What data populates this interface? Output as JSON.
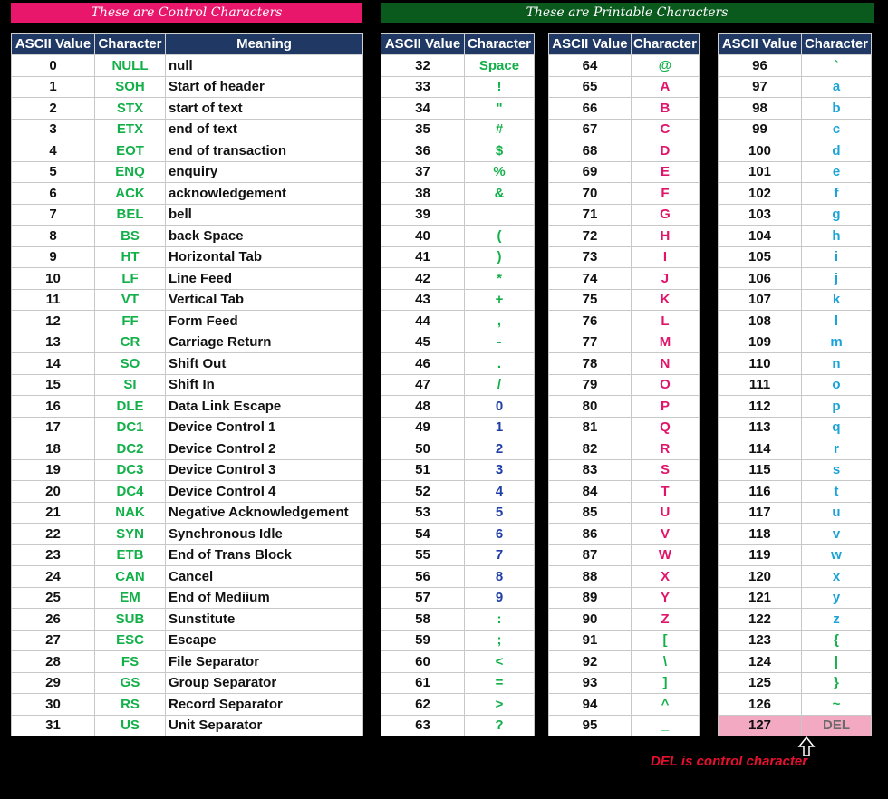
{
  "banners": {
    "control": "These are Control Characters",
    "printable": "These are Printable Characters"
  },
  "headers": {
    "ascii_value": "ASCII Value",
    "character": "Character",
    "meaning": "Meaning"
  },
  "control_rows": [
    {
      "v": "0",
      "c": "NULL",
      "m": "null"
    },
    {
      "v": "1",
      "c": "SOH",
      "m": "Start of header"
    },
    {
      "v": "2",
      "c": "STX",
      "m": "start of text"
    },
    {
      "v": "3",
      "c": "ETX",
      "m": "end of text"
    },
    {
      "v": "4",
      "c": "EOT",
      "m": "end of transaction"
    },
    {
      "v": "5",
      "c": "ENQ",
      "m": "enquiry"
    },
    {
      "v": "6",
      "c": "ACK",
      "m": "acknowledgement"
    },
    {
      "v": "7",
      "c": "BEL",
      "m": "bell"
    },
    {
      "v": "8",
      "c": "BS",
      "m": "back Space"
    },
    {
      "v": "9",
      "c": "HT",
      "m": "Horizontal Tab"
    },
    {
      "v": "10",
      "c": "LF",
      "m": "Line Feed"
    },
    {
      "v": "11",
      "c": "VT",
      "m": "Vertical Tab"
    },
    {
      "v": "12",
      "c": "FF",
      "m": "Form Feed"
    },
    {
      "v": "13",
      "c": "CR",
      "m": "Carriage Return"
    },
    {
      "v": "14",
      "c": "SO",
      "m": "Shift Out"
    },
    {
      "v": "15",
      "c": "SI",
      "m": "Shift In"
    },
    {
      "v": "16",
      "c": "DLE",
      "m": "Data Link Escape"
    },
    {
      "v": "17",
      "c": "DC1",
      "m": "Device Control 1"
    },
    {
      "v": "18",
      "c": "DC2",
      "m": "Device Control 2"
    },
    {
      "v": "19",
      "c": "DC3",
      "m": "Device Control 3"
    },
    {
      "v": "20",
      "c": "DC4",
      "m": "Device Control 4"
    },
    {
      "v": "21",
      "c": "NAK",
      "m": "Negative Acknowledgement"
    },
    {
      "v": "22",
      "c": "SYN",
      "m": "Synchronous Idle"
    },
    {
      "v": "23",
      "c": "ETB",
      "m": "End of Trans Block"
    },
    {
      "v": "24",
      "c": "CAN",
      "m": "Cancel"
    },
    {
      "v": "25",
      "c": "EM",
      "m": "End of Mediium"
    },
    {
      "v": "26",
      "c": "SUB",
      "m": "Sunstitute"
    },
    {
      "v": "27",
      "c": "ESC",
      "m": "Escape"
    },
    {
      "v": "28",
      "c": "FS",
      "m": "File Separator"
    },
    {
      "v": "29",
      "c": "GS",
      "m": "Group Separator"
    },
    {
      "v": "30",
      "c": "RS",
      "m": "Record Separator"
    },
    {
      "v": "31",
      "c": "US",
      "m": "Unit Separator"
    }
  ],
  "printable_col1": [
    {
      "v": "32",
      "c": "Space",
      "k": "cg"
    },
    {
      "v": "33",
      "c": "!",
      "k": "cg"
    },
    {
      "v": "34",
      "c": "\"",
      "k": "cg"
    },
    {
      "v": "35",
      "c": "#",
      "k": "cg"
    },
    {
      "v": "36",
      "c": "$",
      "k": "cg"
    },
    {
      "v": "37",
      "c": "%",
      "k": "cg"
    },
    {
      "v": "38",
      "c": "&",
      "k": "cg"
    },
    {
      "v": "39",
      "c": "",
      "k": "cg"
    },
    {
      "v": "40",
      "c": "(",
      "k": "cg"
    },
    {
      "v": "41",
      "c": ")",
      "k": "cg"
    },
    {
      "v": "42",
      "c": "*",
      "k": "cg"
    },
    {
      "v": "43",
      "c": "+",
      "k": "cg"
    },
    {
      "v": "44",
      "c": ",",
      "k": "cg"
    },
    {
      "v": "45",
      "c": "-",
      "k": "cg"
    },
    {
      "v": "46",
      "c": ".",
      "k": "cg"
    },
    {
      "v": "47",
      "c": "/",
      "k": "cg"
    },
    {
      "v": "48",
      "c": "0",
      "k": "cb"
    },
    {
      "v": "49",
      "c": "1",
      "k": "cb"
    },
    {
      "v": "50",
      "c": "2",
      "k": "cb"
    },
    {
      "v": "51",
      "c": "3",
      "k": "cb"
    },
    {
      "v": "52",
      "c": "4",
      "k": "cb"
    },
    {
      "v": "53",
      "c": "5",
      "k": "cb"
    },
    {
      "v": "54",
      "c": "6",
      "k": "cb"
    },
    {
      "v": "55",
      "c": "7",
      "k": "cb"
    },
    {
      "v": "56",
      "c": "8",
      "k": "cb"
    },
    {
      "v": "57",
      "c": "9",
      "k": "cb"
    },
    {
      "v": "58",
      "c": ":",
      "k": "cg"
    },
    {
      "v": "59",
      "c": ";",
      "k": "cg"
    },
    {
      "v": "60",
      "c": "<",
      "k": "cg"
    },
    {
      "v": "61",
      "c": "=",
      "k": "cg"
    },
    {
      "v": "62",
      "c": ">",
      "k": "cg"
    },
    {
      "v": "63",
      "c": "?",
      "k": "cg"
    }
  ],
  "printable_col2": [
    {
      "v": "64",
      "c": "@",
      "k": "cg"
    },
    {
      "v": "65",
      "c": "A",
      "k": "cr"
    },
    {
      "v": "66",
      "c": "B",
      "k": "cr"
    },
    {
      "v": "67",
      "c": "C",
      "k": "cr"
    },
    {
      "v": "68",
      "c": "D",
      "k": "cr"
    },
    {
      "v": "69",
      "c": "E",
      "k": "cr"
    },
    {
      "v": "70",
      "c": "F",
      "k": "cr"
    },
    {
      "v": "71",
      "c": "G",
      "k": "cr"
    },
    {
      "v": "72",
      "c": "H",
      "k": "cr"
    },
    {
      "v": "73",
      "c": "I",
      "k": "cr"
    },
    {
      "v": "74",
      "c": "J",
      "k": "cr"
    },
    {
      "v": "75",
      "c": "K",
      "k": "cr"
    },
    {
      "v": "76",
      "c": "L",
      "k": "cr"
    },
    {
      "v": "77",
      "c": "M",
      "k": "cr"
    },
    {
      "v": "78",
      "c": "N",
      "k": "cr"
    },
    {
      "v": "79",
      "c": "O",
      "k": "cr"
    },
    {
      "v": "80",
      "c": "P",
      "k": "cr"
    },
    {
      "v": "81",
      "c": "Q",
      "k": "cr"
    },
    {
      "v": "82",
      "c": "R",
      "k": "cr"
    },
    {
      "v": "83",
      "c": "S",
      "k": "cr"
    },
    {
      "v": "84",
      "c": "T",
      "k": "cr"
    },
    {
      "v": "85",
      "c": "U",
      "k": "cr"
    },
    {
      "v": "86",
      "c": "V",
      "k": "cr"
    },
    {
      "v": "87",
      "c": "W",
      "k": "cr"
    },
    {
      "v": "88",
      "c": "X",
      "k": "cr"
    },
    {
      "v": "89",
      "c": "Y",
      "k": "cr"
    },
    {
      "v": "90",
      "c": "Z",
      "k": "cr"
    },
    {
      "v": "91",
      "c": "[",
      "k": "cg"
    },
    {
      "v": "92",
      "c": "\\",
      "k": "cg"
    },
    {
      "v": "93",
      "c": "]",
      "k": "cg"
    },
    {
      "v": "94",
      "c": "^",
      "k": "cg"
    },
    {
      "v": "95",
      "c": "_",
      "k": "cg"
    }
  ],
  "printable_col3": [
    {
      "v": "96",
      "c": "`",
      "k": "cg"
    },
    {
      "v": "97",
      "c": "a",
      "k": "cc"
    },
    {
      "v": "98",
      "c": "b",
      "k": "cc"
    },
    {
      "v": "99",
      "c": "c",
      "k": "cc"
    },
    {
      "v": "100",
      "c": "d",
      "k": "cc"
    },
    {
      "v": "101",
      "c": "e",
      "k": "cc"
    },
    {
      "v": "102",
      "c": "f",
      "k": "cc"
    },
    {
      "v": "103",
      "c": "g",
      "k": "cc"
    },
    {
      "v": "104",
      "c": "h",
      "k": "cc"
    },
    {
      "v": "105",
      "c": "i",
      "k": "cc"
    },
    {
      "v": "106",
      "c": "j",
      "k": "cc"
    },
    {
      "v": "107",
      "c": "k",
      "k": "cc"
    },
    {
      "v": "108",
      "c": "l",
      "k": "cc"
    },
    {
      "v": "109",
      "c": "m",
      "k": "cc"
    },
    {
      "v": "110",
      "c": "n",
      "k": "cc"
    },
    {
      "v": "111",
      "c": "o",
      "k": "cc"
    },
    {
      "v": "112",
      "c": "p",
      "k": "cc"
    },
    {
      "v": "113",
      "c": "q",
      "k": "cc"
    },
    {
      "v": "114",
      "c": "r",
      "k": "cc"
    },
    {
      "v": "115",
      "c": "s",
      "k": "cc"
    },
    {
      "v": "116",
      "c": "t",
      "k": "cc"
    },
    {
      "v": "117",
      "c": "u",
      "k": "cc"
    },
    {
      "v": "118",
      "c": "v",
      "k": "cc"
    },
    {
      "v": "119",
      "c": "w",
      "k": "cc"
    },
    {
      "v": "120",
      "c": "x",
      "k": "cc"
    },
    {
      "v": "121",
      "c": "y",
      "k": "cc"
    },
    {
      "v": "122",
      "c": "z",
      "k": "cc"
    },
    {
      "v": "123",
      "c": "{",
      "k": "cg"
    },
    {
      "v": "124",
      "c": "|",
      "k": "cg"
    },
    {
      "v": "125",
      "c": "}",
      "k": "cg"
    },
    {
      "v": "126",
      "c": "~",
      "k": "cg"
    },
    {
      "v": "127",
      "c": "DEL",
      "k": "delc",
      "highlight": true
    }
  ],
  "note": "DEL is control character",
  "colors": {
    "control_banner": "#e8176c",
    "printable_banner": "#0a5a1e",
    "header_bg": "#1f3864",
    "green_text": "#13b04a",
    "digit_text": "#1f3fa6",
    "upper_text": "#e0146a",
    "lower_text": "#1aa3d8",
    "del_highlight": "#f4a9c2"
  }
}
